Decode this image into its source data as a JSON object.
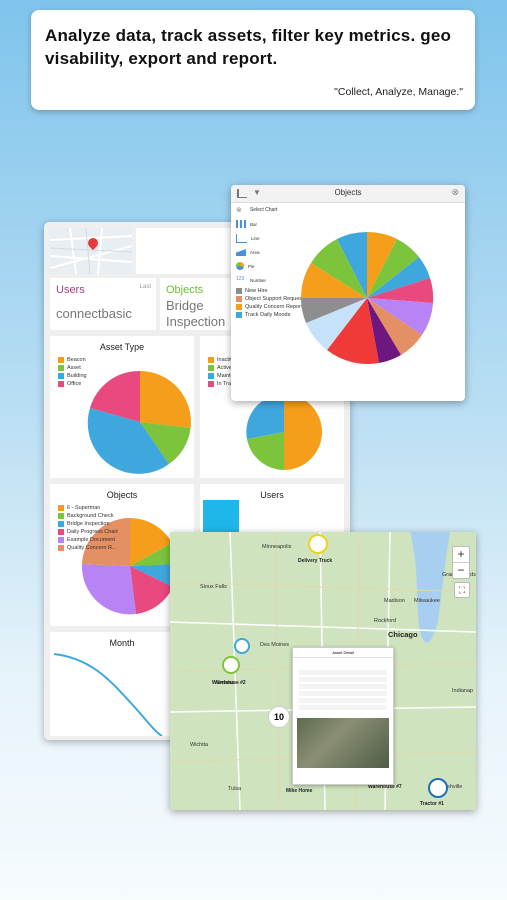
{
  "banner": {
    "headline": "Analyze data, track assets, filter key metrics. geo visability, export and report.",
    "tagline": "\"Collect, Analyze, Manage.\""
  },
  "dashboard": {
    "users_tile": {
      "title": "Users",
      "value": "connectbasic",
      "link": "Last"
    },
    "objects_tile": {
      "title": "Objects",
      "value": "Bridge Inspection"
    },
    "asset_type": {
      "title": "Asset Type",
      "legend": [
        "Beacon",
        "Asset",
        "Building",
        "Office"
      ]
    },
    "status": {
      "legend": [
        "Inactiv",
        "Active",
        "Mainte",
        "In Tra"
      ]
    },
    "objects_chart": {
      "title": "Objects",
      "legend": [
        "6 - Superman",
        "Background Check",
        "Bridge Inspection",
        "Daily Progress Chart",
        "Example Document",
        "Quality Concern R..."
      ]
    },
    "users_chart": {
      "title": "Users"
    },
    "month_chart": {
      "title": "Month"
    }
  },
  "objects_popup": {
    "title": "Objects",
    "menu_header": "Select Chart",
    "chart_types": [
      "Bar",
      "Line",
      "Area",
      "Pie",
      "Number"
    ],
    "legend": [
      "New Hire",
      "Object Support Request",
      "Quality Concern Reporting",
      "Track Daily Moods"
    ]
  },
  "map": {
    "cities": [
      "Minneapolis",
      "Sioux Falls",
      "Des Moines",
      "Madison",
      "Milwaukee",
      "Chicago",
      "Rockford",
      "Omaha",
      "Indianap",
      "Tulsa",
      "Wichita",
      "Nashville",
      "Grand Rapids"
    ],
    "pins": [
      "Delivery Truck",
      "Warehouse #2",
      "Mike Home",
      "Warehouse #7",
      "Tractor #1"
    ],
    "cluster_count": "10",
    "zoom_in": "+",
    "zoom_out": "−",
    "detail_title": "Asset Detail"
  },
  "colors": {
    "orange": "#f59e1b",
    "green": "#7cc43b",
    "blue": "#3ea7de",
    "pink": "#e8497f",
    "purple": "#b883f5",
    "gray": "#8e8e8e",
    "red": "#f03a3a"
  }
}
